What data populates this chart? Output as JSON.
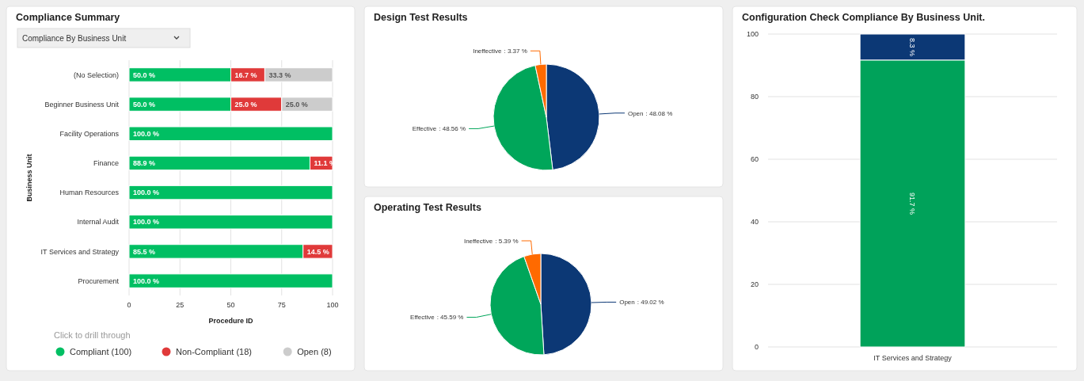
{
  "chart_data": [
    {
      "type": "bar",
      "title": "Compliance Summary",
      "subtitle": "Compliance By Business Unit",
      "orientation": "horizontal",
      "stacked": true,
      "categories": [
        "(No Selection)",
        "Beginner Business Unit",
        "Facility Operations",
        "Finance",
        "Human Resources",
        "Internal Audit",
        "IT Services and Strategy",
        "Procurement"
      ],
      "xlabel": "Procedure ID",
      "ylabel": "Business Unit",
      "xlim": [
        0,
        100
      ],
      "xticks": [
        0,
        25,
        50,
        75,
        100
      ],
      "grid": "x",
      "legend": "bottom",
      "legend_title": "Click to drill through",
      "series": [
        {
          "name": "Compliant (100)",
          "color": "#00bf63",
          "values": [
            50,
            50,
            100,
            88.9,
            100,
            100,
            85.5,
            100
          ],
          "value_labels": [
            "50.0 %",
            "50.0 %",
            "100.0 %",
            "88.9 %",
            "100.0 %",
            "100.0 %",
            "85.5 %",
            "100.0 %"
          ]
        },
        {
          "name": "Non-Compliant (18)",
          "color": "#e03a3a",
          "values": [
            16.7,
            25,
            null,
            11.1,
            null,
            null,
            14.5,
            null
          ],
          "value_labels": [
            "16.7 %",
            "25.0 %",
            null,
            "11.1 %",
            null,
            null,
            "14.5 %",
            null
          ]
        },
        {
          "name": "Open (8)",
          "color": "#cccccc",
          "values": [
            33.3,
            25,
            null,
            null,
            null,
            null,
            null,
            null
          ],
          "value_labels": [
            "33.3 %",
            "25.0 %",
            null,
            null,
            null,
            null,
            null,
            null
          ]
        }
      ]
    },
    {
      "type": "pie",
      "title": "Design Test Results",
      "categories": [
        "Open",
        "Effective",
        "Ineffective"
      ],
      "values": [
        48.08,
        48.56,
        3.37
      ],
      "colors": [
        "#0c3875",
        "#00a65a",
        "#ff6a00"
      ],
      "value_labels": [
        ": 48.08 %",
        ": 48.56 %",
        ": 3.37 %"
      ]
    },
    {
      "type": "pie",
      "title": "Operating Test Results",
      "categories": [
        "Open",
        "Effective",
        "Ineffective"
      ],
      "values": [
        49.02,
        45.59,
        5.39
      ],
      "colors": [
        "#0c3875",
        "#00a65a",
        "#ff6a00"
      ],
      "value_labels": [
        ": 49.02 %",
        ": 45.59 %",
        ": 5.39 %"
      ]
    },
    {
      "type": "bar",
      "title": "Configuration Check Compliance By Business Unit.",
      "stacked": true,
      "categories": [
        "IT Services and Strategy"
      ],
      "ylim": [
        0,
        100
      ],
      "yticks": [
        0,
        20,
        40,
        60,
        80,
        100
      ],
      "grid": "y",
      "series": [
        {
          "color": "#00a25a",
          "values": [
            91.7
          ],
          "value_labels": [
            "91.7 %"
          ]
        },
        {
          "color": "#0c3875",
          "values": [
            8.3
          ],
          "value_labels": [
            "8.3 %"
          ]
        }
      ]
    }
  ]
}
